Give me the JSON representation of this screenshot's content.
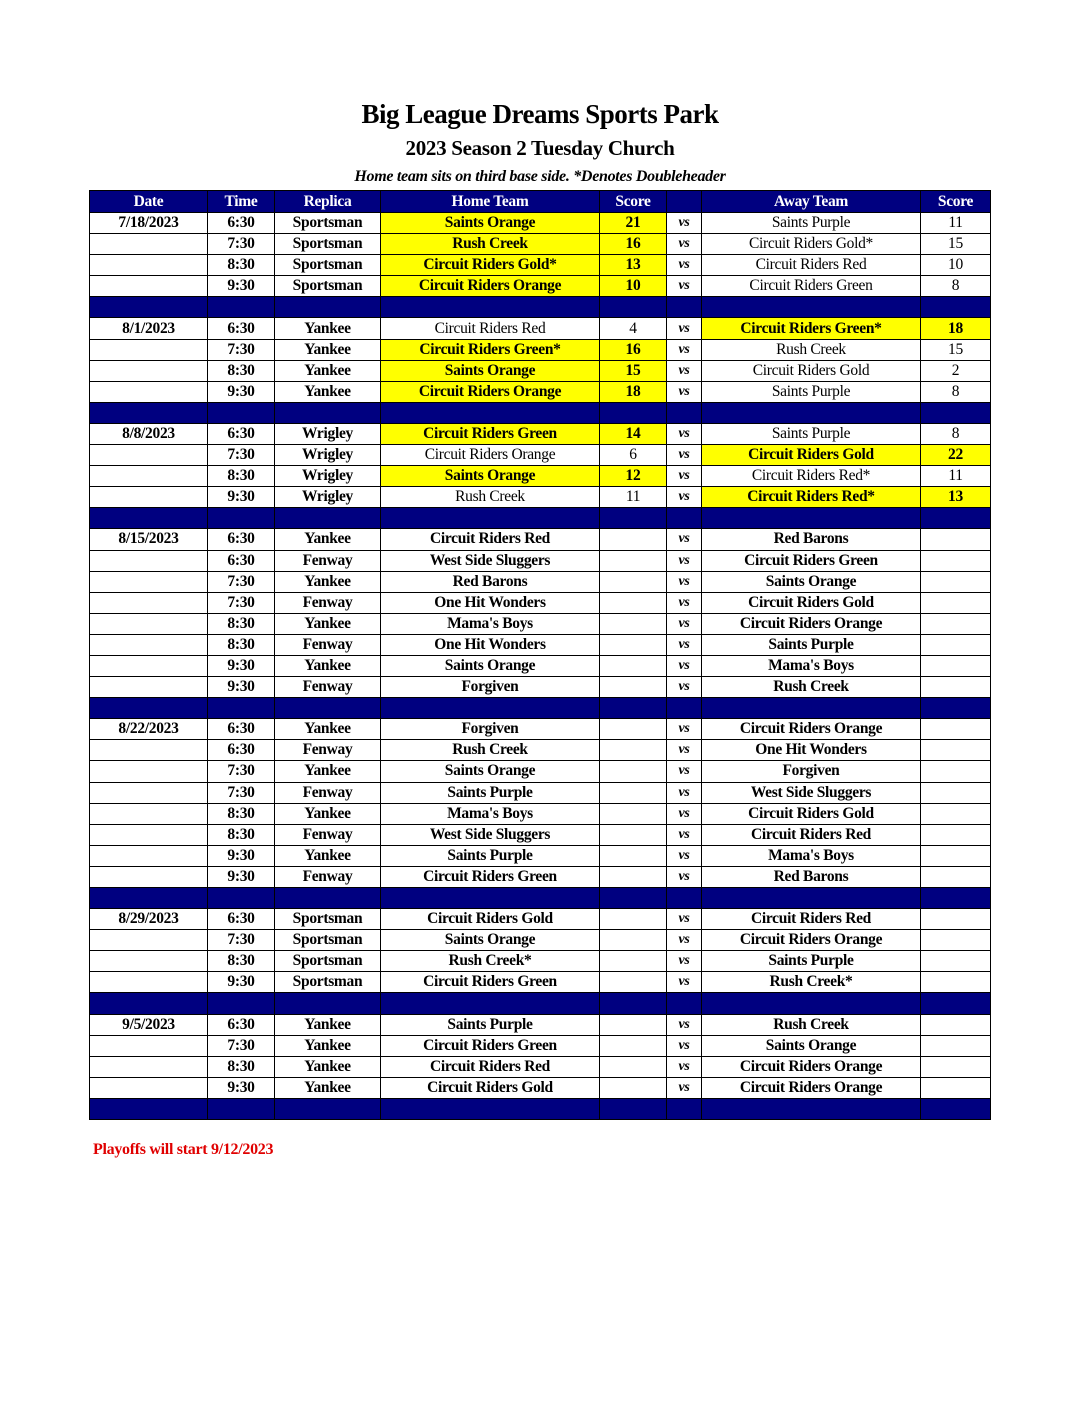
{
  "header": {
    "title": "Big League Dreams Sports Park",
    "subtitle": "2023 Season 2 Tuesday Church",
    "note": "Home team sits on third base side.  *Denotes Doubleheader"
  },
  "columns": [
    "Date",
    "Time",
    "Replica",
    "Home Team",
    "Score",
    "",
    "Away Team",
    "Score"
  ],
  "vs_label": "vs",
  "colors": {
    "header_bg": "#000080",
    "winner_highlight": "#ffff00",
    "footer_text": "#e00000"
  },
  "weeks": [
    {
      "date": "7/18/2023",
      "games": [
        {
          "time": "6:30",
          "replica": "Sportsman",
          "home": "Saints Orange",
          "home_score": "21",
          "away": "Saints Purple",
          "away_score": "11",
          "winner": "home"
        },
        {
          "time": "7:30",
          "replica": "Sportsman",
          "home": "Rush Creek",
          "home_score": "16",
          "away": "Circuit Riders Gold*",
          "away_score": "15",
          "winner": "home"
        },
        {
          "time": "8:30",
          "replica": "Sportsman",
          "home": "Circuit Riders Gold*",
          "home_score": "13",
          "away": "Circuit Riders Red",
          "away_score": "10",
          "winner": "home"
        },
        {
          "time": "9:30",
          "replica": "Sportsman",
          "home": "Circuit Riders Orange",
          "home_score": "10",
          "away": "Circuit Riders Green",
          "away_score": "8",
          "winner": "home"
        }
      ]
    },
    {
      "date": "8/1/2023",
      "games": [
        {
          "time": "6:30",
          "replica": "Yankee",
          "home": "Circuit Riders Red",
          "home_score": "4",
          "away": "Circuit Riders Green*",
          "away_score": "18",
          "winner": "away"
        },
        {
          "time": "7:30",
          "replica": "Yankee",
          "home": "Circuit Riders Green*",
          "home_score": "16",
          "away": "Rush Creek",
          "away_score": "15",
          "winner": "home"
        },
        {
          "time": "8:30",
          "replica": "Yankee",
          "home": "Saints Orange",
          "home_score": "15",
          "away": "Circuit Riders Gold",
          "away_score": "2",
          "winner": "home"
        },
        {
          "time": "9:30",
          "replica": "Yankee",
          "home": "Circuit Riders Orange",
          "home_score": "18",
          "away": "Saints Purple",
          "away_score": "8",
          "winner": "home"
        }
      ]
    },
    {
      "date": "8/8/2023",
      "games": [
        {
          "time": "6:30",
          "replica": "Wrigley",
          "home": "Circuit Riders Green",
          "home_score": "14",
          "away": "Saints Purple",
          "away_score": "8",
          "winner": "home"
        },
        {
          "time": "7:30",
          "replica": "Wrigley",
          "home": "Circuit Riders Orange",
          "home_score": "6",
          "away": "Circuit Riders Gold",
          "away_score": "22",
          "winner": "away"
        },
        {
          "time": "8:30",
          "replica": "Wrigley",
          "home": "Saints Orange",
          "home_score": "12",
          "away": "Circuit Riders Red*",
          "away_score": "11",
          "winner": "home"
        },
        {
          "time": "9:30",
          "replica": "Wrigley",
          "home": "Rush Creek",
          "home_score": "11",
          "away": "Circuit Riders Red*",
          "away_score": "13",
          "winner": "away"
        }
      ]
    },
    {
      "date": "8/15/2023",
      "games": [
        {
          "time": "6:30",
          "replica": "Yankee",
          "home": "Circuit Riders Red",
          "home_score": "",
          "away": "Red Barons",
          "away_score": ""
        },
        {
          "time": "6:30",
          "replica": "Fenway",
          "home": "West Side Sluggers",
          "home_score": "",
          "away": "Circuit Riders Green",
          "away_score": ""
        },
        {
          "time": "7:30",
          "replica": "Yankee",
          "home": "Red Barons",
          "home_score": "",
          "away": "Saints Orange",
          "away_score": ""
        },
        {
          "time": "7:30",
          "replica": "Fenway",
          "home": "One Hit Wonders",
          "home_score": "",
          "away": "Circuit Riders Gold",
          "away_score": ""
        },
        {
          "time": "8:30",
          "replica": "Yankee",
          "home": "Mama's Boys",
          "home_score": "",
          "away": "Circuit Riders Orange",
          "away_score": ""
        },
        {
          "time": "8:30",
          "replica": "Fenway",
          "home": "One Hit Wonders",
          "home_score": "",
          "away": "Saints Purple",
          "away_score": ""
        },
        {
          "time": "9:30",
          "replica": "Yankee",
          "home": "Saints Orange",
          "home_score": "",
          "away": "Mama's Boys",
          "away_score": ""
        },
        {
          "time": "9:30",
          "replica": "Fenway",
          "home": "Forgiven",
          "home_score": "",
          "away": "Rush Creek",
          "away_score": ""
        }
      ]
    },
    {
      "date": "8/22/2023",
      "games": [
        {
          "time": "6:30",
          "replica": "Yankee",
          "home": "Forgiven",
          "home_score": "",
          "away": "Circuit Riders Orange",
          "away_score": ""
        },
        {
          "time": "6:30",
          "replica": "Fenway",
          "home": "Rush Creek",
          "home_score": "",
          "away": "One Hit Wonders",
          "away_score": ""
        },
        {
          "time": "7:30",
          "replica": "Yankee",
          "home": "Saints Orange",
          "home_score": "",
          "away": "Forgiven",
          "away_score": ""
        },
        {
          "time": "7:30",
          "replica": "Fenway",
          "home": "Saints Purple",
          "home_score": "",
          "away": "West Side Sluggers",
          "away_score": ""
        },
        {
          "time": "8:30",
          "replica": "Yankee",
          "home": "Mama's Boys",
          "home_score": "",
          "away": "Circuit Riders Gold",
          "away_score": ""
        },
        {
          "time": "8:30",
          "replica": "Fenway",
          "home": "West Side Sluggers",
          "home_score": "",
          "away": "Circuit Riders Red",
          "away_score": ""
        },
        {
          "time": "9:30",
          "replica": "Yankee",
          "home": "Saints Purple",
          "home_score": "",
          "away": "Mama's Boys",
          "away_score": ""
        },
        {
          "time": "9:30",
          "replica": "Fenway",
          "home": "Circuit Riders Green",
          "home_score": "",
          "away": "Red Barons",
          "away_score": ""
        }
      ]
    },
    {
      "date": "8/29/2023",
      "games": [
        {
          "time": "6:30",
          "replica": "Sportsman",
          "home": "Circuit Riders Gold",
          "home_score": "",
          "away": "Circuit Riders Red",
          "away_score": ""
        },
        {
          "time": "7:30",
          "replica": "Sportsman",
          "home": "Saints Orange",
          "home_score": "",
          "away": "Circuit Riders Orange",
          "away_score": ""
        },
        {
          "time": "8:30",
          "replica": "Sportsman",
          "home": "Rush Creek*",
          "home_score": "",
          "away": "Saints Purple",
          "away_score": ""
        },
        {
          "time": "9:30",
          "replica": "Sportsman",
          "home": "Circuit Riders Green",
          "home_score": "",
          "away": "Rush Creek*",
          "away_score": ""
        }
      ]
    },
    {
      "date": "9/5/2023",
      "games": [
        {
          "time": "6:30",
          "replica": "Yankee",
          "home": "Saints Purple",
          "home_score": "",
          "away": "Rush Creek",
          "away_score": ""
        },
        {
          "time": "7:30",
          "replica": "Yankee",
          "home": "Circuit Riders Green",
          "home_score": "",
          "away": "Saints Orange",
          "away_score": ""
        },
        {
          "time": "8:30",
          "replica": "Yankee",
          "home": "Circuit Riders Red",
          "home_score": "",
          "away": "Circuit Riders Orange",
          "away_score": ""
        },
        {
          "time": "9:30",
          "replica": "Yankee",
          "home": "Circuit Riders Gold",
          "home_score": "",
          "away": "Circuit Riders Orange",
          "away_score": ""
        }
      ]
    }
  ],
  "footer": {
    "playoffs": "Playoffs will start 9/12/2023"
  }
}
